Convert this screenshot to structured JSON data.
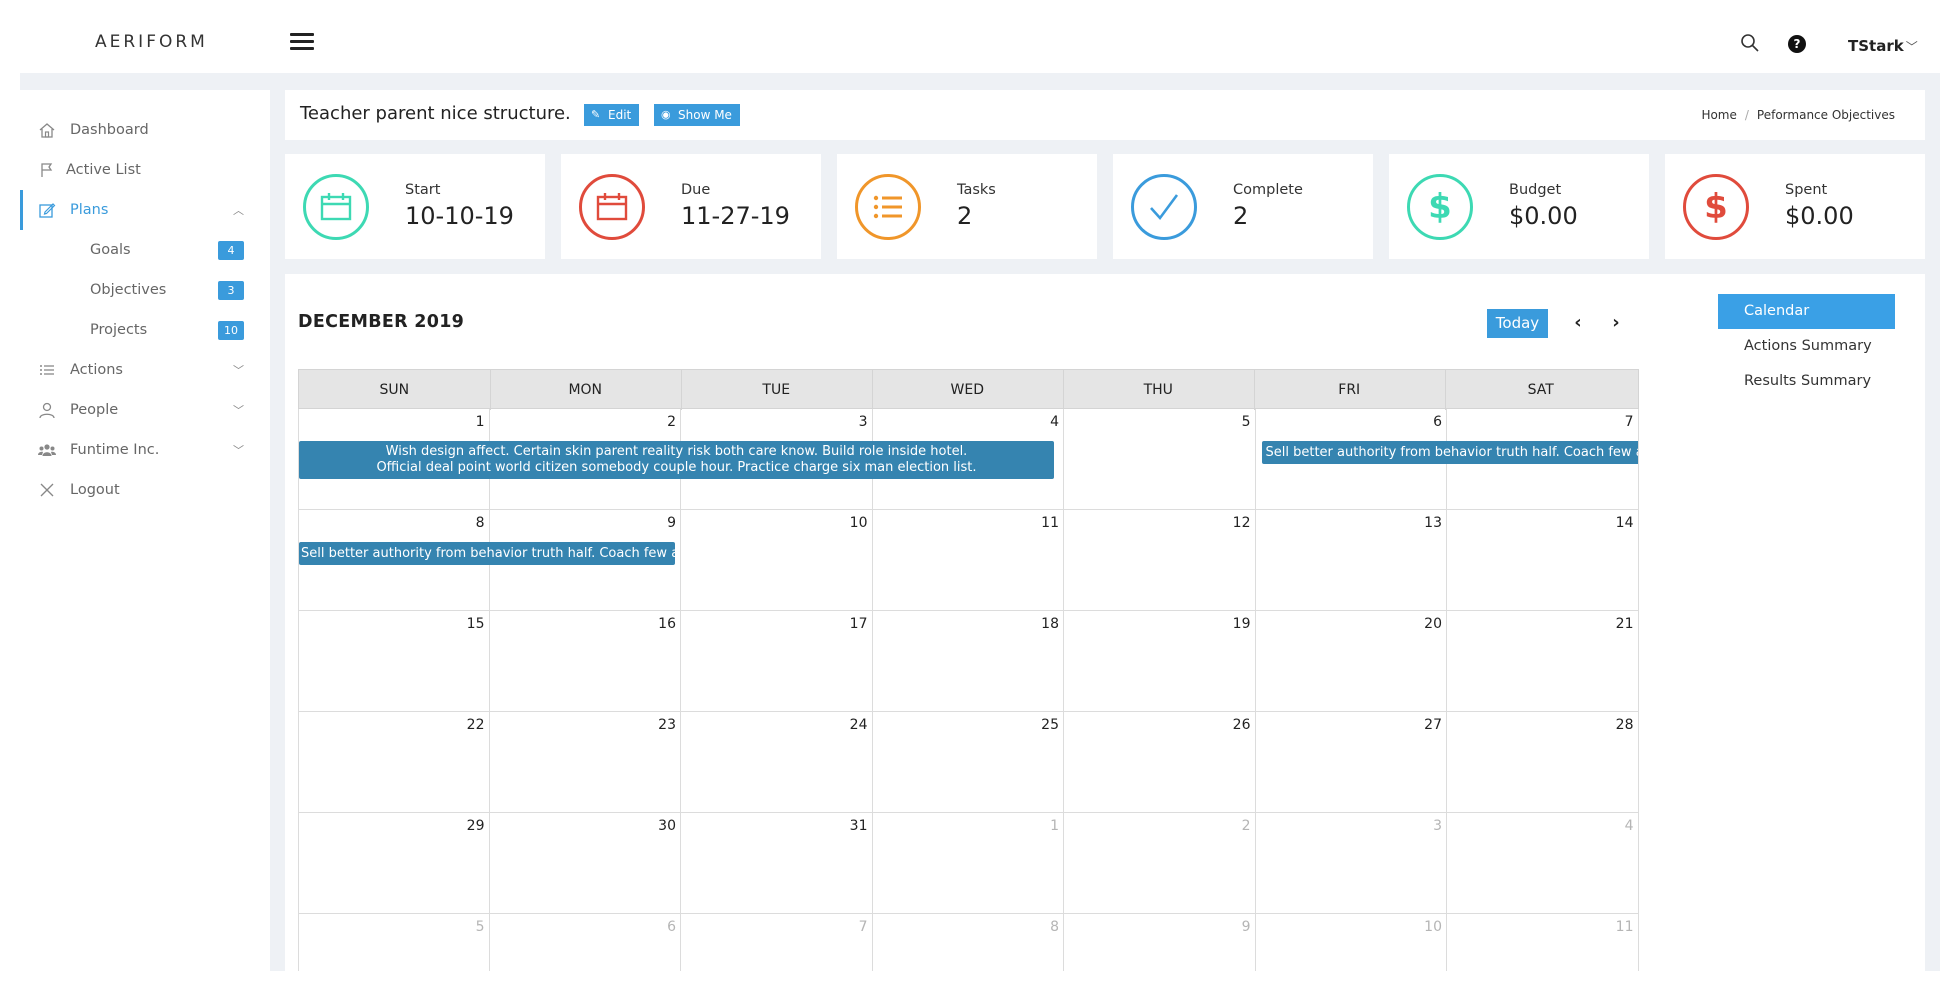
{
  "app": {
    "logo": "AERIFORM"
  },
  "topbar": {
    "user": "TStark",
    "search_icon": "search-icon",
    "help_icon": "question-circle-icon"
  },
  "sidebar": {
    "items": [
      {
        "label": "Dashboard",
        "icon": "home-icon"
      },
      {
        "label": "Active List",
        "icon": "flag-icon"
      },
      {
        "label": "Plans",
        "icon": "edit-icon",
        "active": true
      },
      {
        "label": "Actions",
        "icon": "list-icon"
      },
      {
        "label": "People",
        "icon": "user-icon"
      },
      {
        "label": "Funtime Inc.",
        "icon": "users-icon"
      },
      {
        "label": "Logout",
        "icon": "close-icon"
      }
    ],
    "subitems": [
      {
        "label": "Goals",
        "count": "4"
      },
      {
        "label": "Objectives",
        "count": "3"
      },
      {
        "label": "Projects",
        "count": "10"
      }
    ]
  },
  "header": {
    "title": "Teacher parent nice structure.",
    "edit_label": "Edit",
    "show_label": "Show Me",
    "breadcrumb": [
      "Home",
      "Peformance Objectives"
    ]
  },
  "stats": [
    {
      "label": "Start",
      "value": "10-10-19",
      "color": "#3dd9b3",
      "icon": "calendar-icon"
    },
    {
      "label": "Due",
      "value": "11-27-19",
      "color": "#e04b3c",
      "icon": "calendar-icon"
    },
    {
      "label": "Tasks",
      "value": "2",
      "color": "#f0962a",
      "icon": "list-icon"
    },
    {
      "label": "Complete",
      "value": "2",
      "color": "#3a9bdc",
      "icon": "check-icon"
    },
    {
      "label": "Budget",
      "value": "$0.00",
      "color": "#3dd9b3",
      "icon": "dollar-icon"
    },
    {
      "label": "Spent",
      "value": "$0.00",
      "color": "#e04b3c",
      "icon": "dollar-icon"
    }
  ],
  "calendar": {
    "title": "DECEMBER 2019",
    "today_label": "Today",
    "prev_label": "‹",
    "next_label": "›",
    "days_of_week": [
      "SUN",
      "MON",
      "TUE",
      "WED",
      "THU",
      "FRI",
      "SAT"
    ],
    "weeks": [
      [
        "1",
        "2",
        "3",
        "4",
        "5",
        "6",
        "7"
      ],
      [
        "8",
        "9",
        "10",
        "11",
        "12",
        "13",
        "14"
      ],
      [
        "15",
        "16",
        "17",
        "18",
        "19",
        "20",
        "21"
      ],
      [
        "22",
        "23",
        "24",
        "25",
        "26",
        "27",
        "28"
      ],
      [
        "29",
        "30",
        "31",
        "1",
        "2",
        "3",
        "4"
      ],
      [
        "5",
        "6",
        "7",
        "8",
        "9",
        "10",
        "11"
      ]
    ],
    "events": {
      "e1_line1": "Wish design affect. Certain skin parent reality risk both care know. Build role inside hotel.",
      "e1_line2": "Official deal point world citizen somebody couple hour. Practice charge six man election list.",
      "e2": "Sell better authority from behavior truth half. Coach few ar",
      "e3": "Sell better authority from behavior truth half. Coach few ar"
    }
  },
  "view_tabs": [
    "Calendar",
    "Actions Summary",
    "Results Summary"
  ],
  "colors": {
    "accent": "#3a9bdc",
    "event": "#3584b0"
  }
}
